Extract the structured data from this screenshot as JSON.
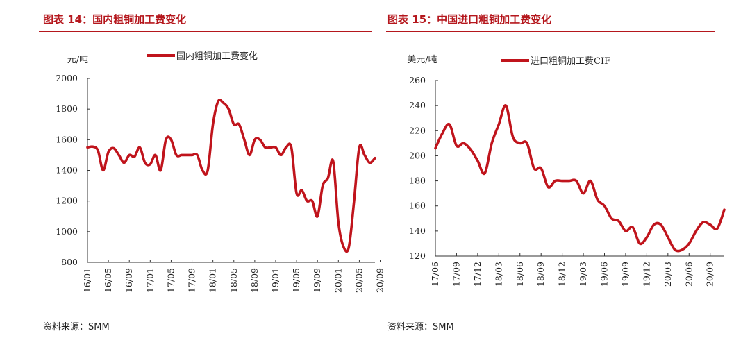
{
  "source_label": "资料来源：SMM",
  "chart_data": [
    {
      "type": "line",
      "figure_title": "图表 14：国内粗铜加工费变化",
      "ylabel": "元/吨",
      "ylim": [
        800,
        2000
      ],
      "yticks": [
        800,
        1000,
        1200,
        1400,
        1600,
        1800,
        2000
      ],
      "xticks": [
        "16/01",
        "16/05",
        "16/09",
        "17/01",
        "17/05",
        "17/09",
        "18/01",
        "18/05",
        "18/09",
        "19/01",
        "19/05",
        "19/09",
        "20/01",
        "20/05",
        "20/09"
      ],
      "color": "#c0141c",
      "grid": false,
      "legend_position": "top",
      "series": [
        {
          "name": "国内粗铜加工费变化",
          "points": [
            [
              "16/01",
              1550
            ],
            [
              "16/02",
              1555
            ],
            [
              "16/03",
              1530
            ],
            [
              "16/04",
              1400
            ],
            [
              "16/05",
              1520
            ],
            [
              "16/06",
              1545
            ],
            [
              "16/07",
              1500
            ],
            [
              "16/08",
              1450
            ],
            [
              "16/09",
              1500
            ],
            [
              "16/10",
              1490
            ],
            [
              "16/11",
              1550
            ],
            [
              "16/12",
              1450
            ],
            [
              "17/01",
              1440
            ],
            [
              "17/02",
              1500
            ],
            [
              "17/03",
              1400
            ],
            [
              "17/04",
              1600
            ],
            [
              "17/05",
              1600
            ],
            [
              "17/06",
              1500
            ],
            [
              "17/07",
              1500
            ],
            [
              "17/08",
              1500
            ],
            [
              "17/09",
              1500
            ],
            [
              "17/10",
              1500
            ],
            [
              "17/11",
              1400
            ],
            [
              "17/12",
              1400
            ],
            [
              "18/01",
              1700
            ],
            [
              "18/02",
              1850
            ],
            [
              "18/03",
              1840
            ],
            [
              "18/04",
              1800
            ],
            [
              "18/05",
              1700
            ],
            [
              "18/06",
              1700
            ],
            [
              "18/07",
              1600
            ],
            [
              "18/08",
              1500
            ],
            [
              "18/09",
              1600
            ],
            [
              "18/10",
              1600
            ],
            [
              "18/11",
              1550
            ],
            [
              "18/12",
              1550
            ],
            [
              "19/01",
              1550
            ],
            [
              "19/02",
              1500
            ],
            [
              "19/03",
              1550
            ],
            [
              "19/04",
              1550
            ],
            [
              "19/05",
              1250
            ],
            [
              "19/06",
              1270
            ],
            [
              "19/07",
              1200
            ],
            [
              "19/08",
              1200
            ],
            [
              "19/09",
              1100
            ],
            [
              "19/10",
              1300
            ],
            [
              "19/11",
              1350
            ],
            [
              "19/12",
              1460
            ],
            [
              "20/01",
              1060
            ],
            [
              "20/02",
              900
            ],
            [
              "20/03",
              900
            ],
            [
              "20/04",
              1200
            ],
            [
              "20/05",
              1550
            ],
            [
              "20/06",
              1500
            ],
            [
              "20/07",
              1450
            ],
            [
              "20/08",
              1480
            ]
          ]
        }
      ]
    },
    {
      "type": "line",
      "figure_title": "图表 15：中国进口粗铜加工费变化",
      "ylabel": "美元/吨",
      "ylim": [
        120,
        260
      ],
      "yticks": [
        120,
        140,
        160,
        180,
        200,
        220,
        240,
        260
      ],
      "xticks": [
        "17/06",
        "17/09",
        "17/12",
        "18/03",
        "18/06",
        "18/09",
        "18/12",
        "19/03",
        "19/06",
        "19/09",
        "19/12",
        "20/03",
        "20/06",
        "20/09"
      ],
      "color": "#c0141c",
      "grid": false,
      "legend_position": "top",
      "series": [
        {
          "name": "进口粗铜加工费CIF",
          "points": [
            [
              "17/06",
              206
            ],
            [
              "17/07",
              218
            ],
            [
              "17/08",
              225
            ],
            [
              "17/09",
              208
            ],
            [
              "17/10",
              210
            ],
            [
              "17/11",
              205
            ],
            [
              "17/12",
              196
            ],
            [
              "18/01",
              186
            ],
            [
              "18/02",
              210
            ],
            [
              "18/03",
              225
            ],
            [
              "18/04",
              240
            ],
            [
              "18/05",
              215
            ],
            [
              "18/06",
              210
            ],
            [
              "18/07",
              210
            ],
            [
              "18/08",
              190
            ],
            [
              "18/09",
              190
            ],
            [
              "18/10",
              175
            ],
            [
              "18/11",
              180
            ],
            [
              "18/12",
              180
            ],
            [
              "19/01",
              180
            ],
            [
              "19/02",
              180
            ],
            [
              "19/03",
              170
            ],
            [
              "19/04",
              180
            ],
            [
              "19/05",
              165
            ],
            [
              "19/06",
              160
            ],
            [
              "19/07",
              150
            ],
            [
              "19/08",
              148
            ],
            [
              "19/09",
              140
            ],
            [
              "19/10",
              143
            ],
            [
              "19/11",
              130
            ],
            [
              "19/12",
              135
            ],
            [
              "20/01",
              145
            ],
            [
              "20/02",
              145
            ],
            [
              "20/03",
              135
            ],
            [
              "20/04",
              125
            ],
            [
              "20/05",
              125
            ],
            [
              "20/06",
              130
            ],
            [
              "20/07",
              140
            ],
            [
              "20/08",
              147
            ],
            [
              "20/09",
              145
            ],
            [
              "20/10",
              142
            ],
            [
              "20/11",
              157
            ]
          ]
        }
      ]
    }
  ]
}
